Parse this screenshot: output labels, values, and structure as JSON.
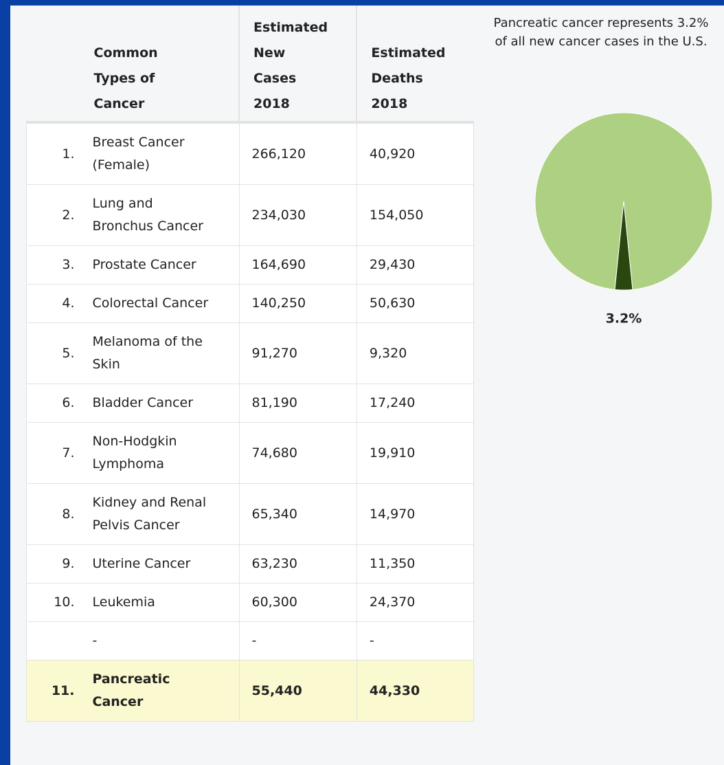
{
  "table": {
    "headers": [
      "Common Types of Cancer",
      "Estimated New Cases 2018",
      "Estimated Deaths 2018"
    ],
    "rows": [
      [
        "1.",
        "Breast Cancer (Female)",
        "266,120",
        "40,920"
      ],
      [
        "2.",
        "Lung and Bronchus Cancer",
        "234,030",
        "154,050"
      ],
      [
        "3.",
        "Prostate Cancer",
        "164,690",
        "29,430"
      ],
      [
        "4.",
        "Colorectal Cancer",
        "140,250",
        "50,630"
      ],
      [
        "5.",
        "Melanoma of the Skin",
        "91,270",
        "9,320"
      ],
      [
        "6.",
        "Bladder Cancer",
        "81,190",
        "17,240"
      ],
      [
        "7.",
        "Non-Hodgkin Lymphoma",
        "74,680",
        "19,910"
      ],
      [
        "8.",
        "Kidney and Renal Pelvis Cancer",
        "65,340",
        "14,970"
      ],
      [
        "9.",
        "Uterine Cancer",
        "63,230",
        "11,350"
      ],
      [
        "10.",
        "Leukemia",
        "60,300",
        "24,370"
      ],
      [
        null,
        "-",
        "-",
        "-"
      ],
      [
        "11.",
        "Pancreatic Cancer",
        "55,440",
        "44,330"
      ]
    ]
  },
  "chart_data": {
    "type": "pie",
    "title": "Pancreatic cancer represents 3.2% of all new cancer cases in the U.S.",
    "values": [
      96.8,
      3.2
    ],
    "value_labels": [
      null,
      "3.2%"
    ],
    "colors": [
      "#aed082",
      "#2b4710"
    ]
  }
}
